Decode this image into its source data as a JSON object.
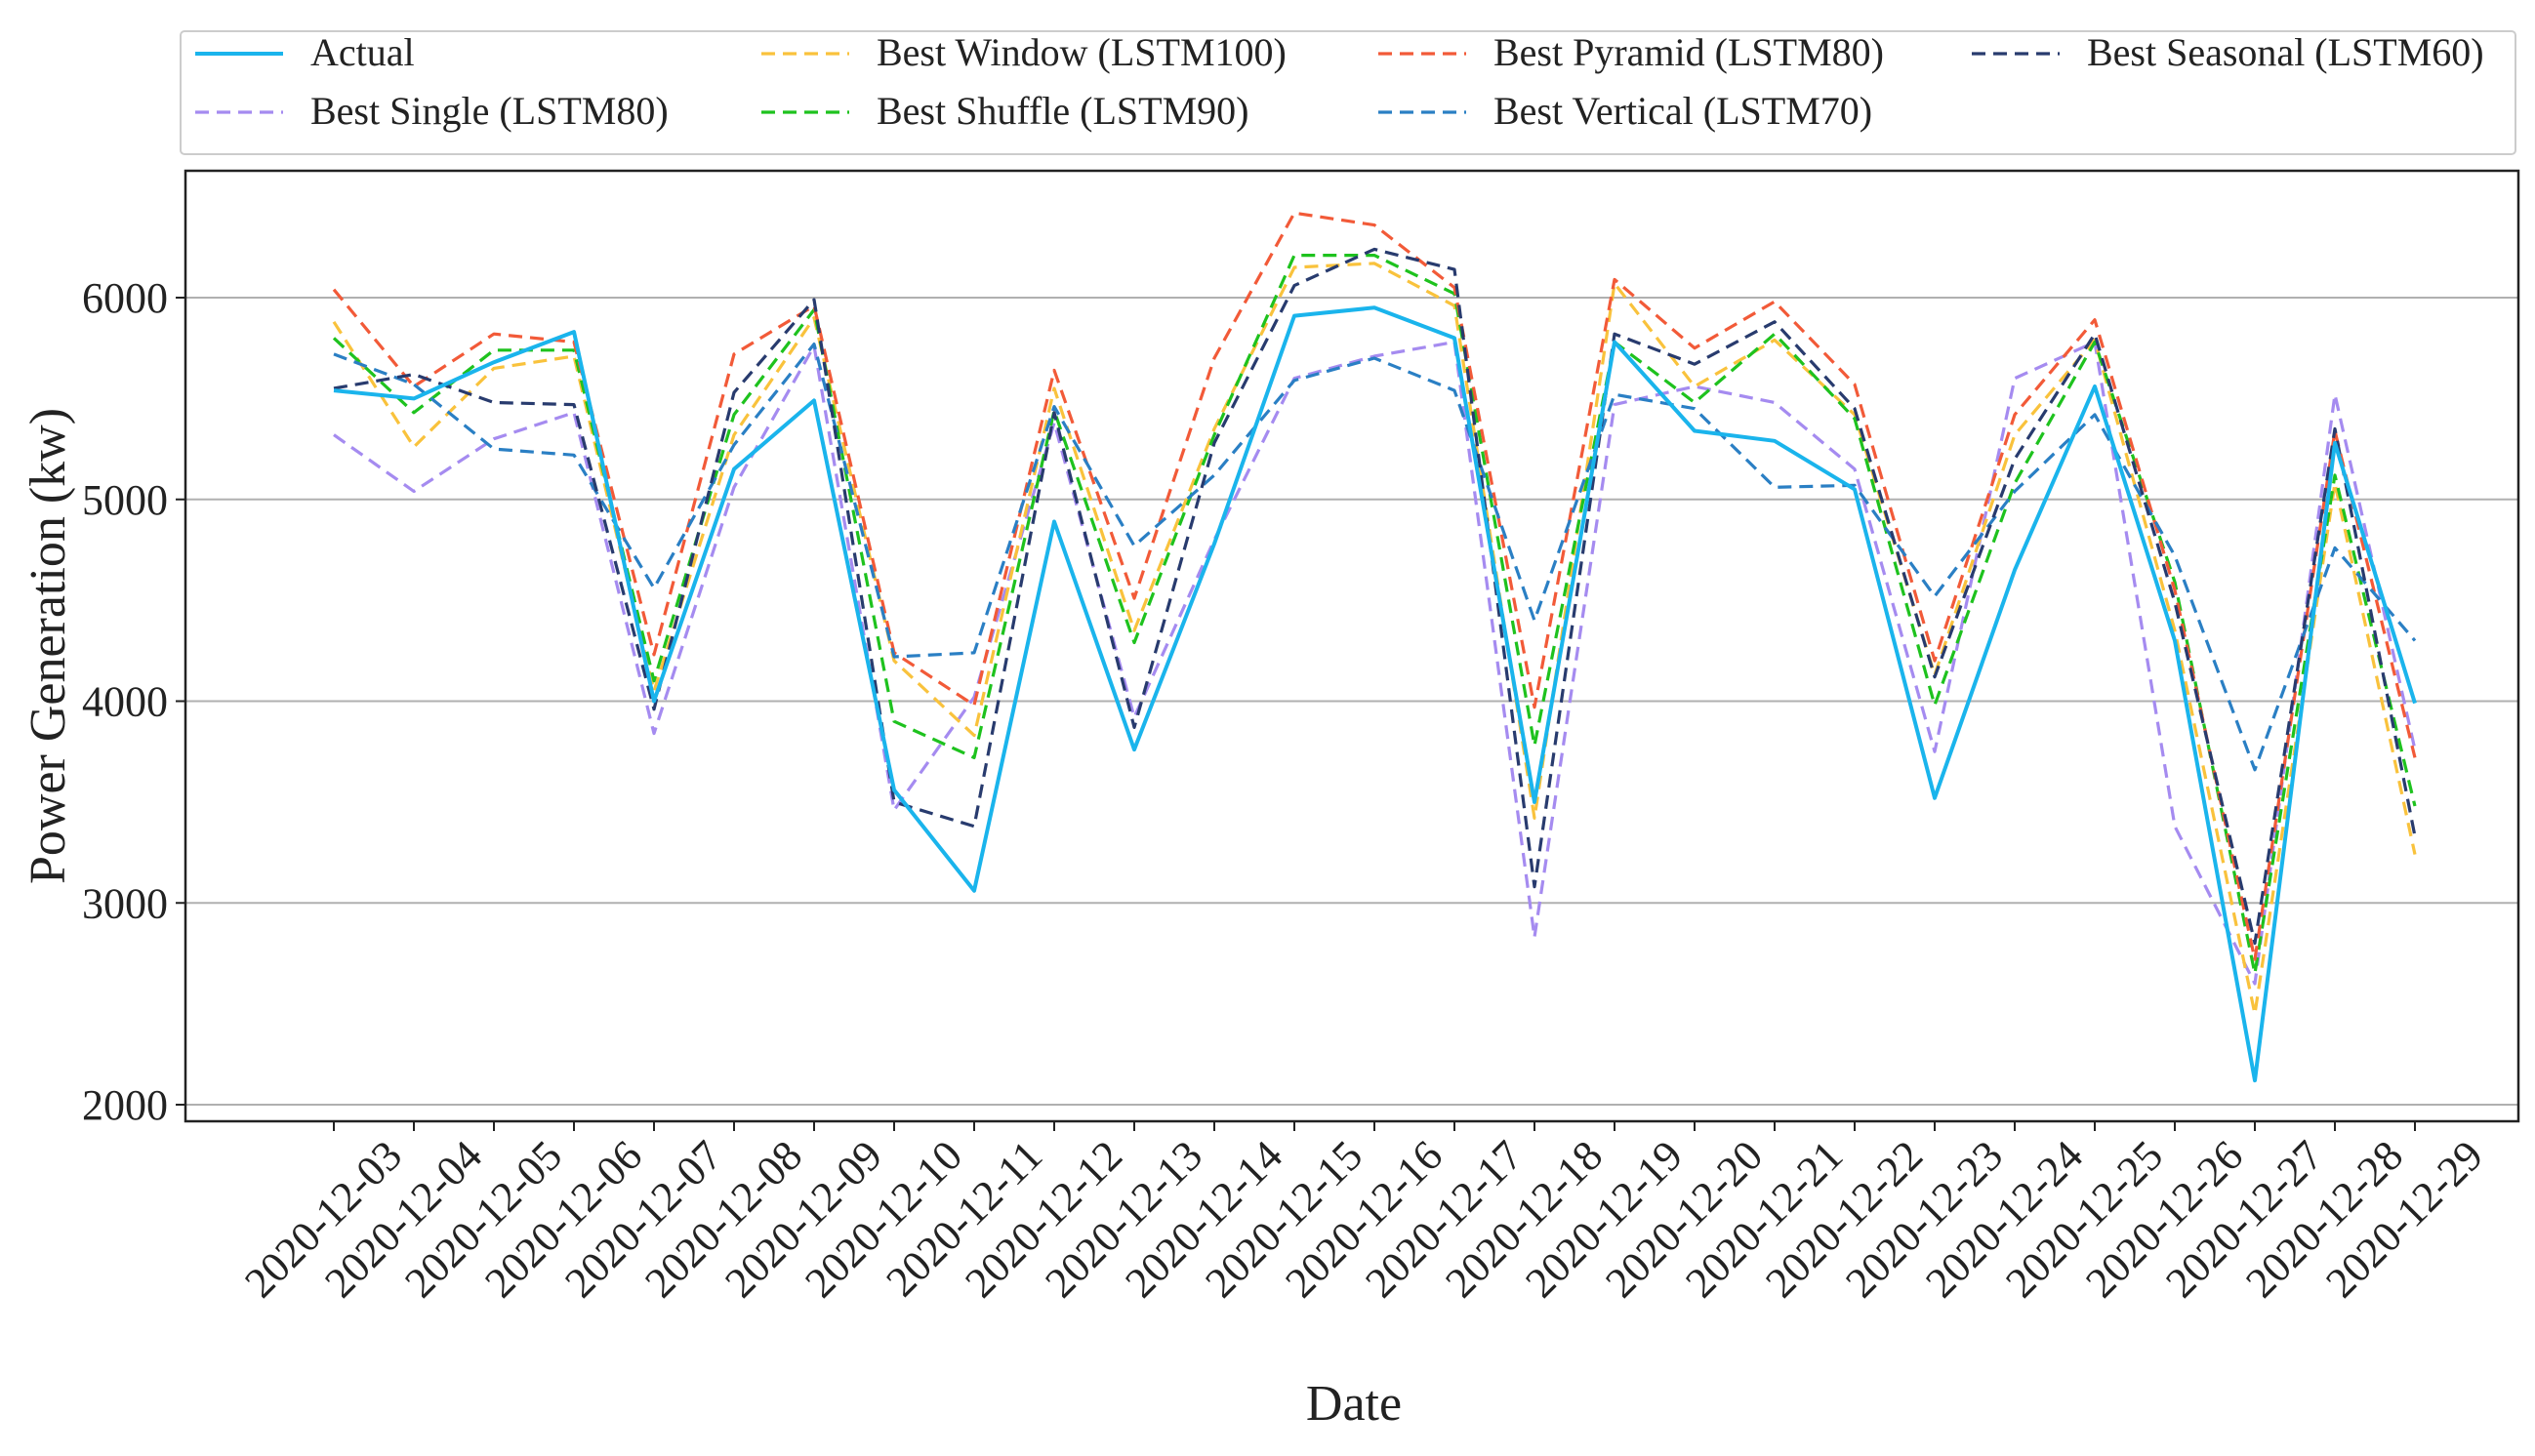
{
  "chart_data": {
    "type": "line",
    "title": "",
    "xlabel": "Date",
    "ylabel": "Power Generation (kw)",
    "ylim": [
      1900,
      6600
    ],
    "yticks": [
      2000,
      3000,
      4000,
      5000,
      6000
    ],
    "grid": "horizontal",
    "legend_position": "top",
    "categories": [
      "2020-12-03",
      "2020-12-04",
      "2020-12-05",
      "2020-12-06",
      "2020-12-07",
      "2020-12-08",
      "2020-12-09",
      "2020-12-10",
      "2020-12-11",
      "2020-12-12",
      "2020-12-13",
      "2020-12-14",
      "2020-12-15",
      "2020-12-16",
      "2020-12-17",
      "2020-12-18",
      "2020-12-19",
      "2020-12-20",
      "2020-12-21",
      "2020-12-22",
      "2020-12-23",
      "2020-12-24",
      "2020-12-25",
      "2020-12-26",
      "2020-12-27",
      "2020-12-28",
      "2020-12-29"
    ],
    "series": [
      {
        "name": "Actual",
        "color": "#1ab4ec",
        "dash": "solid",
        "values": [
          5540,
          5500,
          5680,
          5830,
          4000,
          5150,
          5490,
          3560,
          3060,
          4890,
          3760,
          4780,
          5910,
          5950,
          5800,
          3500,
          5780,
          5340,
          5290,
          5050,
          3520,
          4650,
          5560,
          4300,
          2120,
          5280,
          3990
        ]
      },
      {
        "name": "Best Single (LSTM80)",
        "color": "#a58bf0",
        "dash": "dashed",
        "values": [
          5320,
          5040,
          5300,
          5430,
          3840,
          5060,
          5760,
          3460,
          4020,
          5380,
          3920,
          4800,
          5600,
          5710,
          5780,
          2830,
          5470,
          5560,
          5480,
          5150,
          3750,
          5600,
          5780,
          3380,
          2600,
          5520,
          3760
        ]
      },
      {
        "name": "Best Window (LSTM100)",
        "color": "#f9c23c",
        "dash": "dashed",
        "values": [
          5880,
          5260,
          5650,
          5710,
          4050,
          5320,
          5900,
          4200,
          3830,
          5550,
          4350,
          5350,
          6150,
          6170,
          5960,
          3420,
          6070,
          5560,
          5790,
          5420,
          4130,
          5320,
          5790,
          4350,
          2450,
          5080,
          3240
        ]
      },
      {
        "name": "Best Shuffle (LSTM90)",
        "color": "#1ec21e",
        "dash": "dashed",
        "values": [
          5800,
          5430,
          5740,
          5740,
          4100,
          5420,
          5940,
          3900,
          3720,
          5440,
          4290,
          5320,
          6210,
          6210,
          6020,
          3780,
          5780,
          5480,
          5820,
          5400,
          3980,
          5080,
          5780,
          4590,
          2650,
          5120,
          3480
        ]
      },
      {
        "name": "Best Pyramid (LSTM80)",
        "color": "#f25a38",
        "dash": "dashed",
        "values": [
          6040,
          5560,
          5820,
          5780,
          4230,
          5720,
          5960,
          4240,
          3980,
          5640,
          4510,
          5700,
          6420,
          6360,
          6050,
          3970,
          6090,
          5750,
          5980,
          5570,
          4200,
          5420,
          5890,
          4550,
          2720,
          5340,
          3720
        ]
      },
      {
        "name": "Best Vertical (LSTM70)",
        "color": "#2a7fc4",
        "dash": "dashed",
        "values": [
          5720,
          5570,
          5250,
          5220,
          4560,
          5270,
          5770,
          4220,
          4240,
          5460,
          4770,
          5120,
          5590,
          5700,
          5540,
          4400,
          5520,
          5450,
          5060,
          5070,
          4520,
          5040,
          5420,
          4720,
          3660,
          4760,
          4300
        ]
      },
      {
        "name": "Best Seasonal (LSTM60)",
        "color": "#283b6e",
        "dash": "dashed",
        "values": [
          5550,
          5620,
          5480,
          5470,
          3960,
          5530,
          5990,
          3500,
          3380,
          5430,
          3870,
          5280,
          6060,
          6240,
          6140,
          3080,
          5820,
          5670,
          5880,
          5450,
          4120,
          5200,
          5820,
          4490,
          2800,
          5350,
          3330
        ]
      }
    ]
  }
}
